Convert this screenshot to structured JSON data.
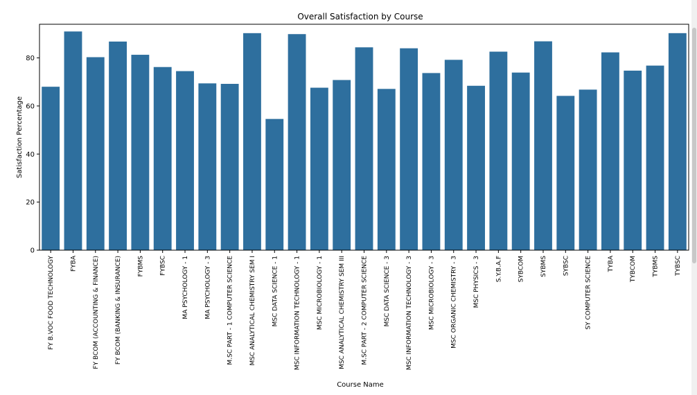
{
  "chart_data": {
    "type": "bar",
    "title": "Overall Satisfaction by Course",
    "xlabel": "Course Name",
    "ylabel": "Satisfaction Percentage",
    "ylim": [
      0,
      94
    ],
    "yticks": [
      0,
      20,
      40,
      60,
      80
    ],
    "bar_color": "#2e6f9e",
    "grid": false,
    "categories": [
      "FY B.VOC FOOD TECHNOLOGY",
      "FYBA",
      "FY BCOM (ACCOUNTING & FINANCE)",
      "FY BCOM (BANKING & INSURANCE)",
      "FYBMS",
      "FYBSC",
      "MA PSYCHOLOGY - 1",
      "MA PSYCHOLOGY - 3",
      "M.SC PART - 1 COMPUTER SCIENCE",
      "MSC ANALYTICAL CHEMISTRY SEM I",
      "MSC DATA SCIENCE - 1",
      "MSC INFORMATION TECHNOLOGY - 1",
      "MSC MICROBIOLOGY - 1",
      "MSC ANALYTICAL CHEMISTRY SEM III",
      "M.SC PART - 2 COMPUTER SCIENCE",
      "MSC DATA SCIENCE - 3",
      "MSC INFORMATION TECHNOLOGY - 3",
      "MSC MICROBIOLOGY - 3",
      "MSC ORGANIC CHEMISTRY - 3",
      "MSC PHYSICS - 3",
      "S.Y.B.A.F",
      "SYBCOM",
      "SYBMS",
      "SYBSC",
      "SY COMPUTER SCIENCE",
      "TYBA",
      "TYBCOM",
      "TYBMS",
      "TYBSC"
    ],
    "values": [
      68.0,
      91.0,
      80.3,
      86.8,
      81.3,
      76.2,
      74.5,
      69.4,
      69.2,
      90.3,
      54.6,
      89.9,
      67.6,
      70.8,
      84.4,
      67.1,
      84.0,
      73.7,
      79.2,
      68.4,
      82.6,
      73.9,
      86.9,
      64.2,
      66.8,
      82.3,
      74.7,
      76.8,
      90.3
    ]
  }
}
